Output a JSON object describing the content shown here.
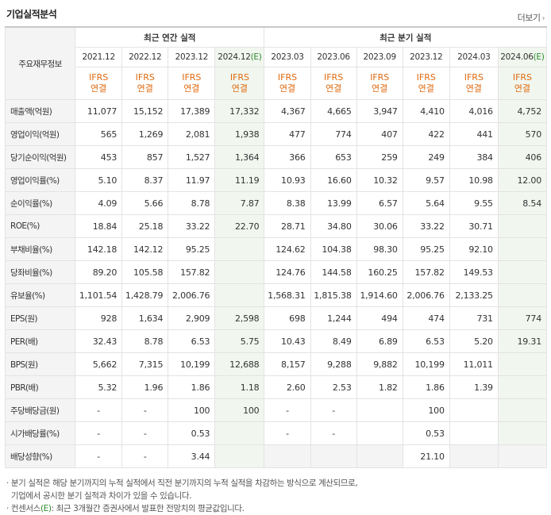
{
  "title": "기업실적분석",
  "more_label": "더보기",
  "header": {
    "corner": "주요재무정보",
    "annual_group": "최근 연간 실적",
    "quarter_group": "최근 분기 실적",
    "periods": [
      {
        "label": "2021.12",
        "est": false
      },
      {
        "label": "2022.12",
        "est": false
      },
      {
        "label": "2023.12",
        "est": false
      },
      {
        "label": "2024.12",
        "est": true
      },
      {
        "label": "2023.03",
        "est": false
      },
      {
        "label": "2023.06",
        "est": false
      },
      {
        "label": "2023.09",
        "est": false
      },
      {
        "label": "2023.12",
        "est": false
      },
      {
        "label": "2024.03",
        "est": false
      },
      {
        "label": "2024.06",
        "est": true
      }
    ],
    "est_mark": "(E)",
    "ifrs_line1": "IFRS",
    "ifrs_line2": "연결"
  },
  "rows": [
    {
      "label": "매출액(억원)",
      "values": [
        "11,077",
        "15,152",
        "17,389",
        "17,332",
        "4,367",
        "4,665",
        "3,947",
        "4,410",
        "4,016",
        "4,752"
      ]
    },
    {
      "label": "영업이익(억원)",
      "values": [
        "565",
        "1,269",
        "2,081",
        "1,938",
        "477",
        "774",
        "407",
        "422",
        "441",
        "570"
      ]
    },
    {
      "label": "당기순이익(억원)",
      "values": [
        "453",
        "857",
        "1,527",
        "1,364",
        "366",
        "653",
        "259",
        "249",
        "384",
        "406"
      ]
    },
    {
      "label": "영업이익률(%)",
      "values": [
        "5.10",
        "8.37",
        "11.97",
        "11.19",
        "10.93",
        "16.60",
        "10.32",
        "9.57",
        "10.98",
        "12.00"
      ],
      "sep": true
    },
    {
      "label": "순이익률(%)",
      "values": [
        "4.09",
        "5.66",
        "8.78",
        "7.87",
        "8.38",
        "13.99",
        "6.57",
        "5.64",
        "9.55",
        "8.54"
      ]
    },
    {
      "label": "ROE(%)",
      "values": [
        "18.84",
        "25.18",
        "33.22",
        "22.70",
        "28.71",
        "34.80",
        "30.06",
        "33.22",
        "30.71",
        ""
      ]
    },
    {
      "label": "부채비율(%)",
      "values": [
        "142.18",
        "142.12",
        "95.25",
        "",
        "124.62",
        "104.38",
        "98.30",
        "95.25",
        "92.10",
        ""
      ],
      "sep": true
    },
    {
      "label": "당좌비율(%)",
      "values": [
        "89.20",
        "105.58",
        "157.82",
        "",
        "124.76",
        "144.58",
        "160.25",
        "157.82",
        "149.53",
        ""
      ]
    },
    {
      "label": "유보율(%)",
      "values": [
        "1,101.54",
        "1,428.79",
        "2,006.76",
        "",
        "1,568.31",
        "1,815.38",
        "1,914.60",
        "2,006.76",
        "2,133.25",
        ""
      ]
    },
    {
      "label": "EPS(원)",
      "values": [
        "928",
        "1,634",
        "2,909",
        "2,598",
        "698",
        "1,244",
        "494",
        "474",
        "731",
        "774"
      ],
      "sep": true
    },
    {
      "label": "PER(배)",
      "values": [
        "32.43",
        "8.78",
        "6.53",
        "5.75",
        "10.43",
        "8.49",
        "6.89",
        "6.53",
        "5.20",
        "19.31"
      ]
    },
    {
      "label": "BPS(원)",
      "values": [
        "5,662",
        "7,315",
        "10,199",
        "12,688",
        "8,157",
        "9,288",
        "9,882",
        "10,199",
        "11,011",
        ""
      ]
    },
    {
      "label": "PBR(배)",
      "values": [
        "5.32",
        "1.96",
        "1.86",
        "1.18",
        "2.60",
        "2.53",
        "1.82",
        "1.86",
        "1.39",
        ""
      ]
    },
    {
      "label": "주당배당금(원)",
      "values": [
        "-",
        "-",
        "100",
        "100",
        "-",
        "-",
        "",
        "100",
        "",
        ""
      ],
      "sep": true
    },
    {
      "label": "시가배당률(%)",
      "values": [
        "-",
        "-",
        "0.53",
        "",
        "-",
        "-",
        "",
        "0.53",
        "",
        ""
      ]
    },
    {
      "label": "배당성향(%)",
      "values": [
        "-",
        "-",
        "3.44",
        "",
        "",
        "",
        "",
        "21.10",
        "",
        ""
      ],
      "blanks": [
        4,
        5,
        6,
        8,
        9
      ]
    }
  ],
  "notes": {
    "line1": "분기 실적은 해당 분기까지의 누적 실적에서 직전 분기까지의 누적 실적을 차감하는 방식으로 계산되므로,",
    "line2": "기업에서 공시한 분기 실적과 차이가 있을 수 있습니다.",
    "line3_pre": "컨센서스",
    "line3_mark": "(E)",
    "line3_post": ": 최근 3개월간 증권사에서 발표한 전망치의 평균값입니다."
  }
}
